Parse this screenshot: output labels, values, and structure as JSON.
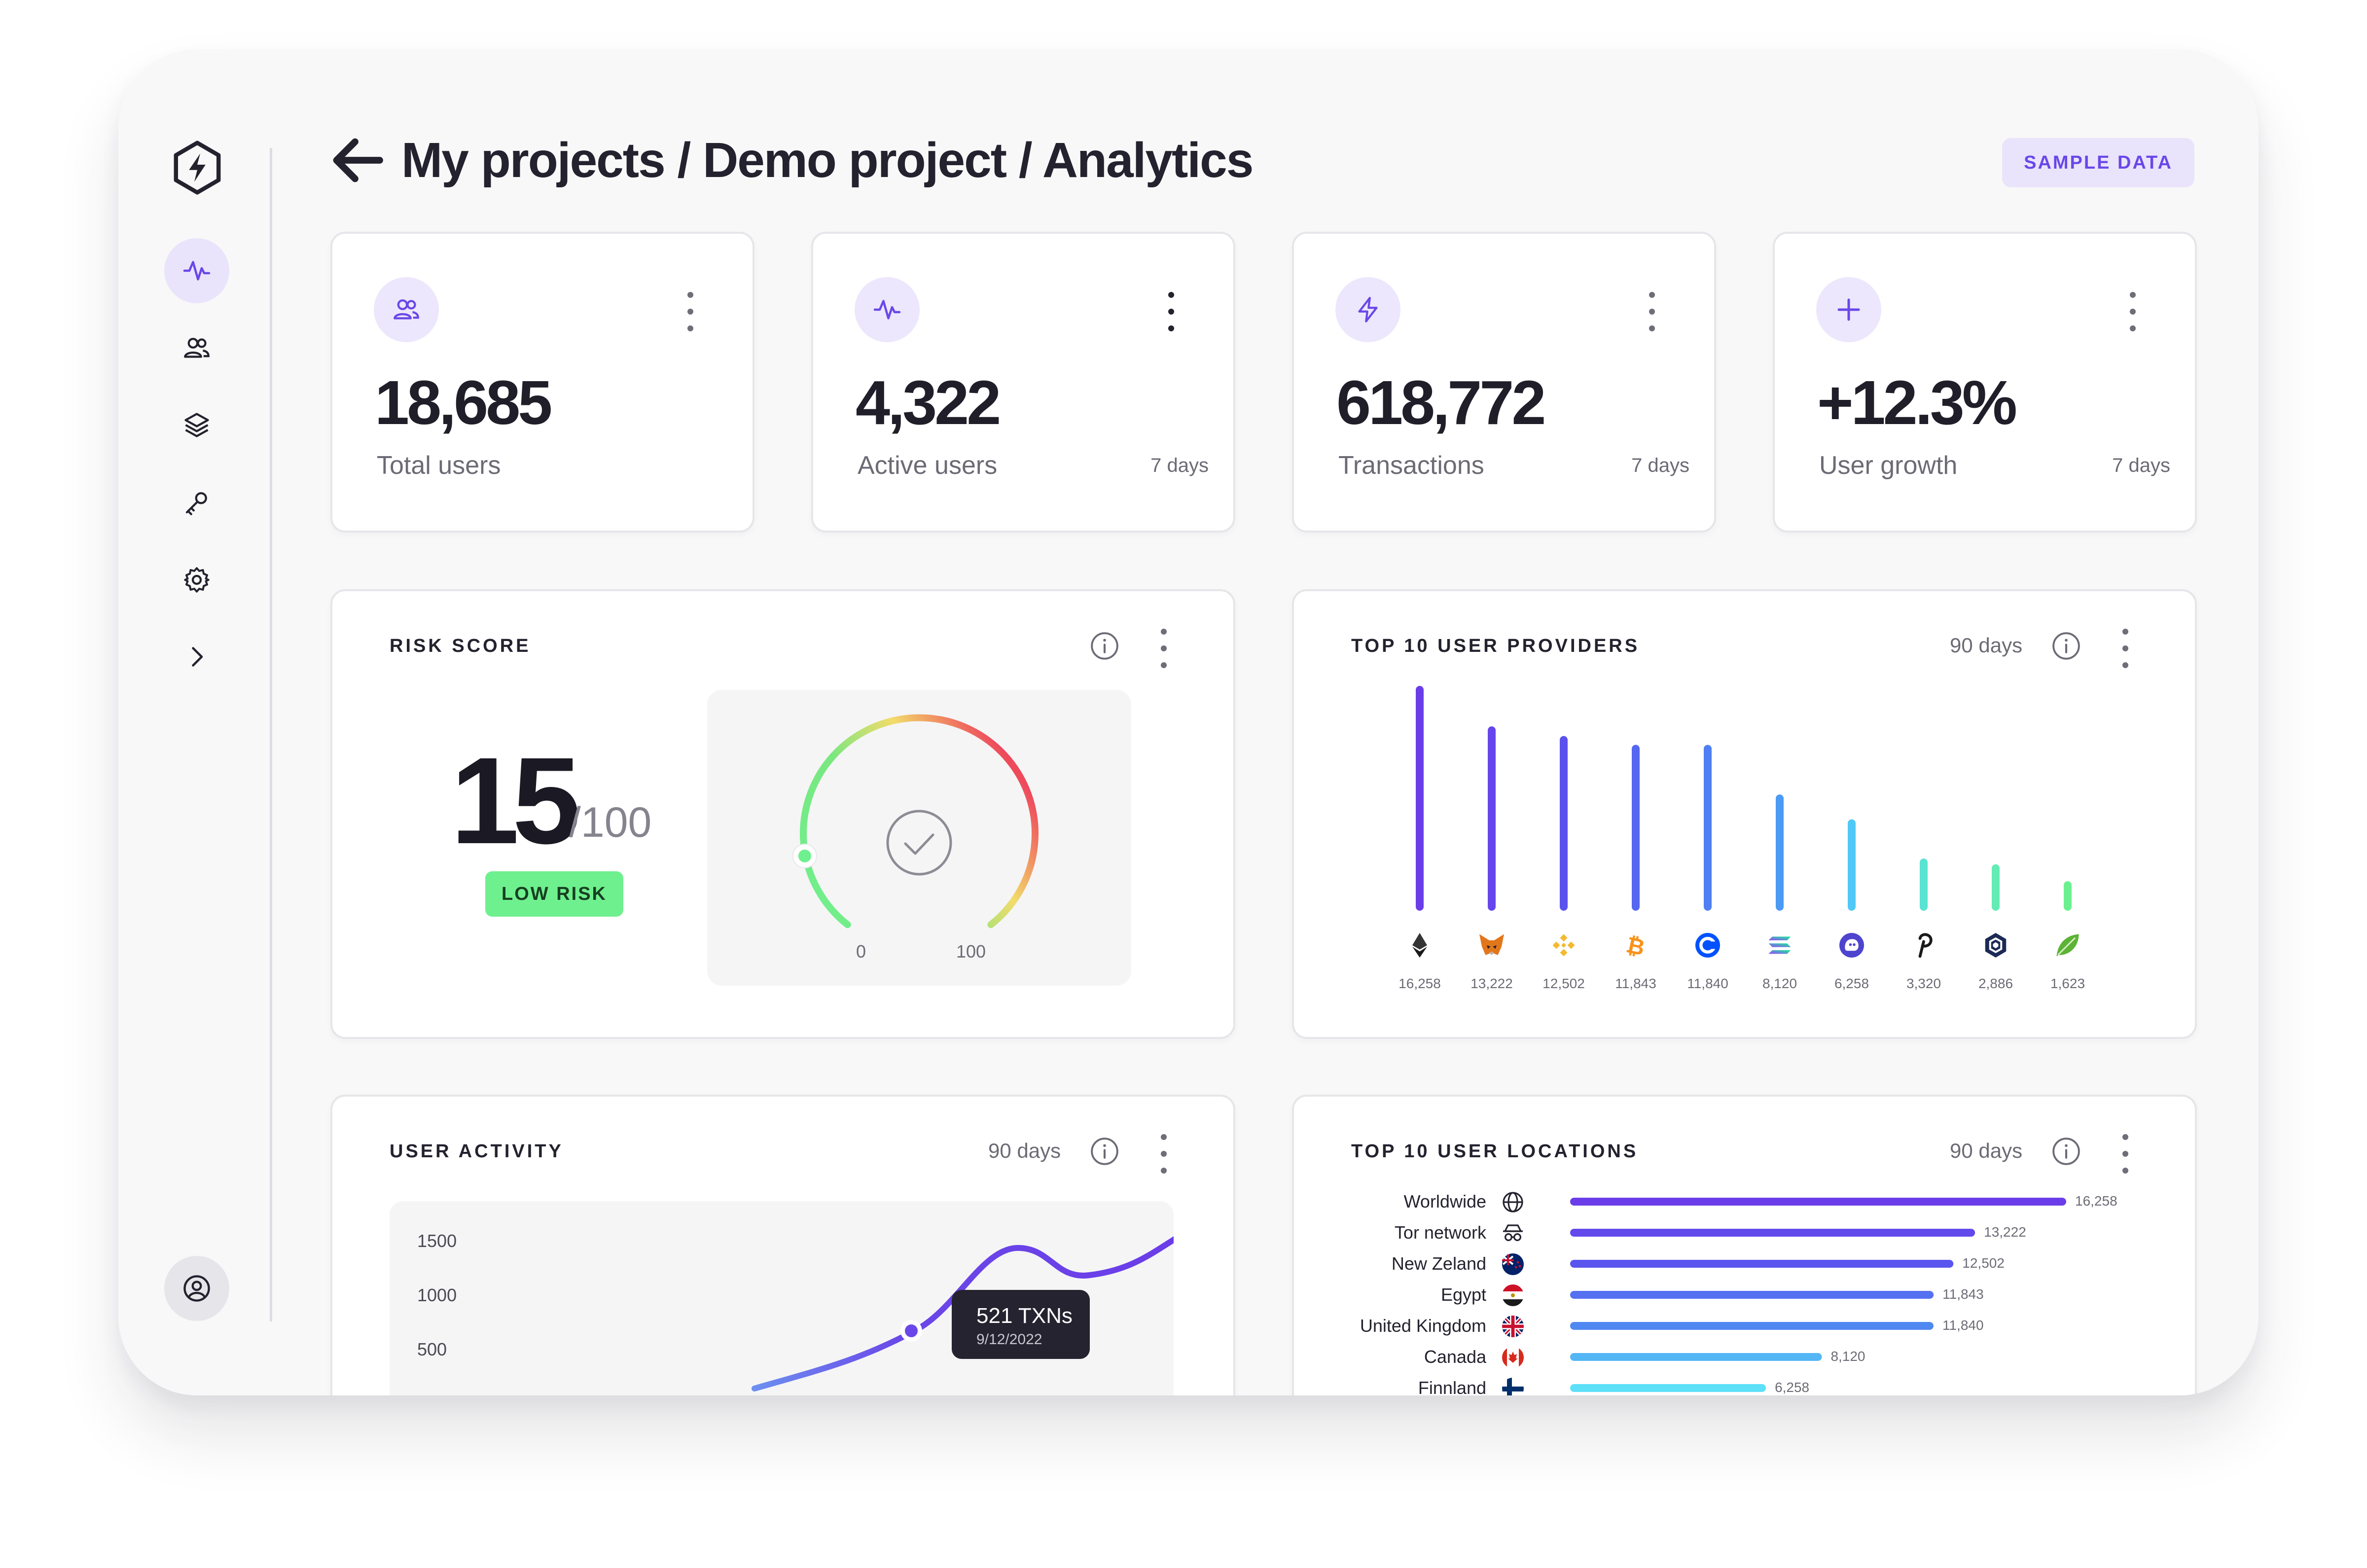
{
  "header": {
    "breadcrumb": "My projects / Demo project / Analytics",
    "sample_button": "SAMPLE DATA"
  },
  "sidebar": {
    "items": [
      {
        "icon": "activity-icon",
        "active": true
      },
      {
        "icon": "users-icon"
      },
      {
        "icon": "layers-icon"
      },
      {
        "icon": "key-icon"
      },
      {
        "icon": "gear-icon"
      },
      {
        "icon": "chevron-right-icon"
      }
    ],
    "bottom_icon": "user-circle-icon"
  },
  "stats": [
    {
      "icon": "users-icon",
      "value": "18,685",
      "label": "Total users",
      "period": ""
    },
    {
      "icon": "activity-icon",
      "value": "4,322",
      "label": "Active users",
      "period": "7 days"
    },
    {
      "icon": "bolt-icon",
      "value": "618,772",
      "label": "Transactions",
      "period": "7 days"
    },
    {
      "icon": "plus-icon",
      "value": "+12.3%",
      "label": "User growth",
      "period": "7 days"
    }
  ],
  "risk": {
    "title": "RISK SCORE",
    "value": "15",
    "max": "/100",
    "badge": "LOW RISK",
    "gauge_min": "0",
    "gauge_max": "100",
    "score_fraction": 0.15
  },
  "providers": {
    "title": "TOP 10 USER PROVIDERS",
    "period": "90 days",
    "chart_data": {
      "type": "bar",
      "categories": [
        "ethereum-icon",
        "metamask-icon",
        "binance-icon",
        "bitcoin-icon",
        "coinbase-icon",
        "solana-icon",
        "phantom-icon",
        "polkadot-icon",
        "cronos-icon",
        "leaf-icon"
      ],
      "labels": [
        "16,258",
        "13,222",
        "12,502",
        "11,843",
        "11,840",
        "8,120",
        "6,258",
        "3,320",
        "2,886",
        "1,623"
      ],
      "values": [
        16258,
        13222,
        12502,
        11843,
        11840,
        8120,
        6258,
        3320,
        2886,
        1623
      ],
      "colors": [
        "#6b3de8",
        "#6646ec",
        "#5b52ee",
        "#5566f0",
        "#4f7ff2",
        "#4b9af4",
        "#50c9f6",
        "#5ae2d2",
        "#63ecb4",
        "#6cf08f"
      ]
    }
  },
  "activity": {
    "title": "USER ACTIVITY",
    "period": "90 days",
    "chart_data": {
      "type": "line",
      "y_ticks": [
        "1500",
        "1000",
        "500"
      ],
      "highlight": {
        "value": "521 TXNs",
        "date": "9/12/2022"
      }
    }
  },
  "locations": {
    "title": "TOP 10 USER LOCATIONS",
    "period": "90 days",
    "chart_data": {
      "type": "bar",
      "orientation": "horizontal",
      "categories": [
        "Worldwide",
        "Tor network",
        "New Zeland",
        "Egypt",
        "United Kingdom",
        "Canada",
        "Finnland"
      ],
      "labels": [
        "16,258",
        "13,222",
        "12,502",
        "11,843",
        "11,840",
        "8,120",
        "6,258"
      ],
      "values": [
        16258,
        13222,
        12502,
        11843,
        11840,
        8120,
        6258
      ],
      "icons": [
        "globe-icon",
        "incognito-icon",
        "flag-new-zealand-icon",
        "flag-egypt-icon",
        "flag-uk-icon",
        "flag-canada-icon",
        "flag-finland-icon"
      ],
      "colors": [
        "#6b3de8",
        "#6249ec",
        "#5a55ee",
        "#5570f0",
        "#5088f2",
        "#54b6f5",
        "#5ee0f8"
      ]
    }
  }
}
